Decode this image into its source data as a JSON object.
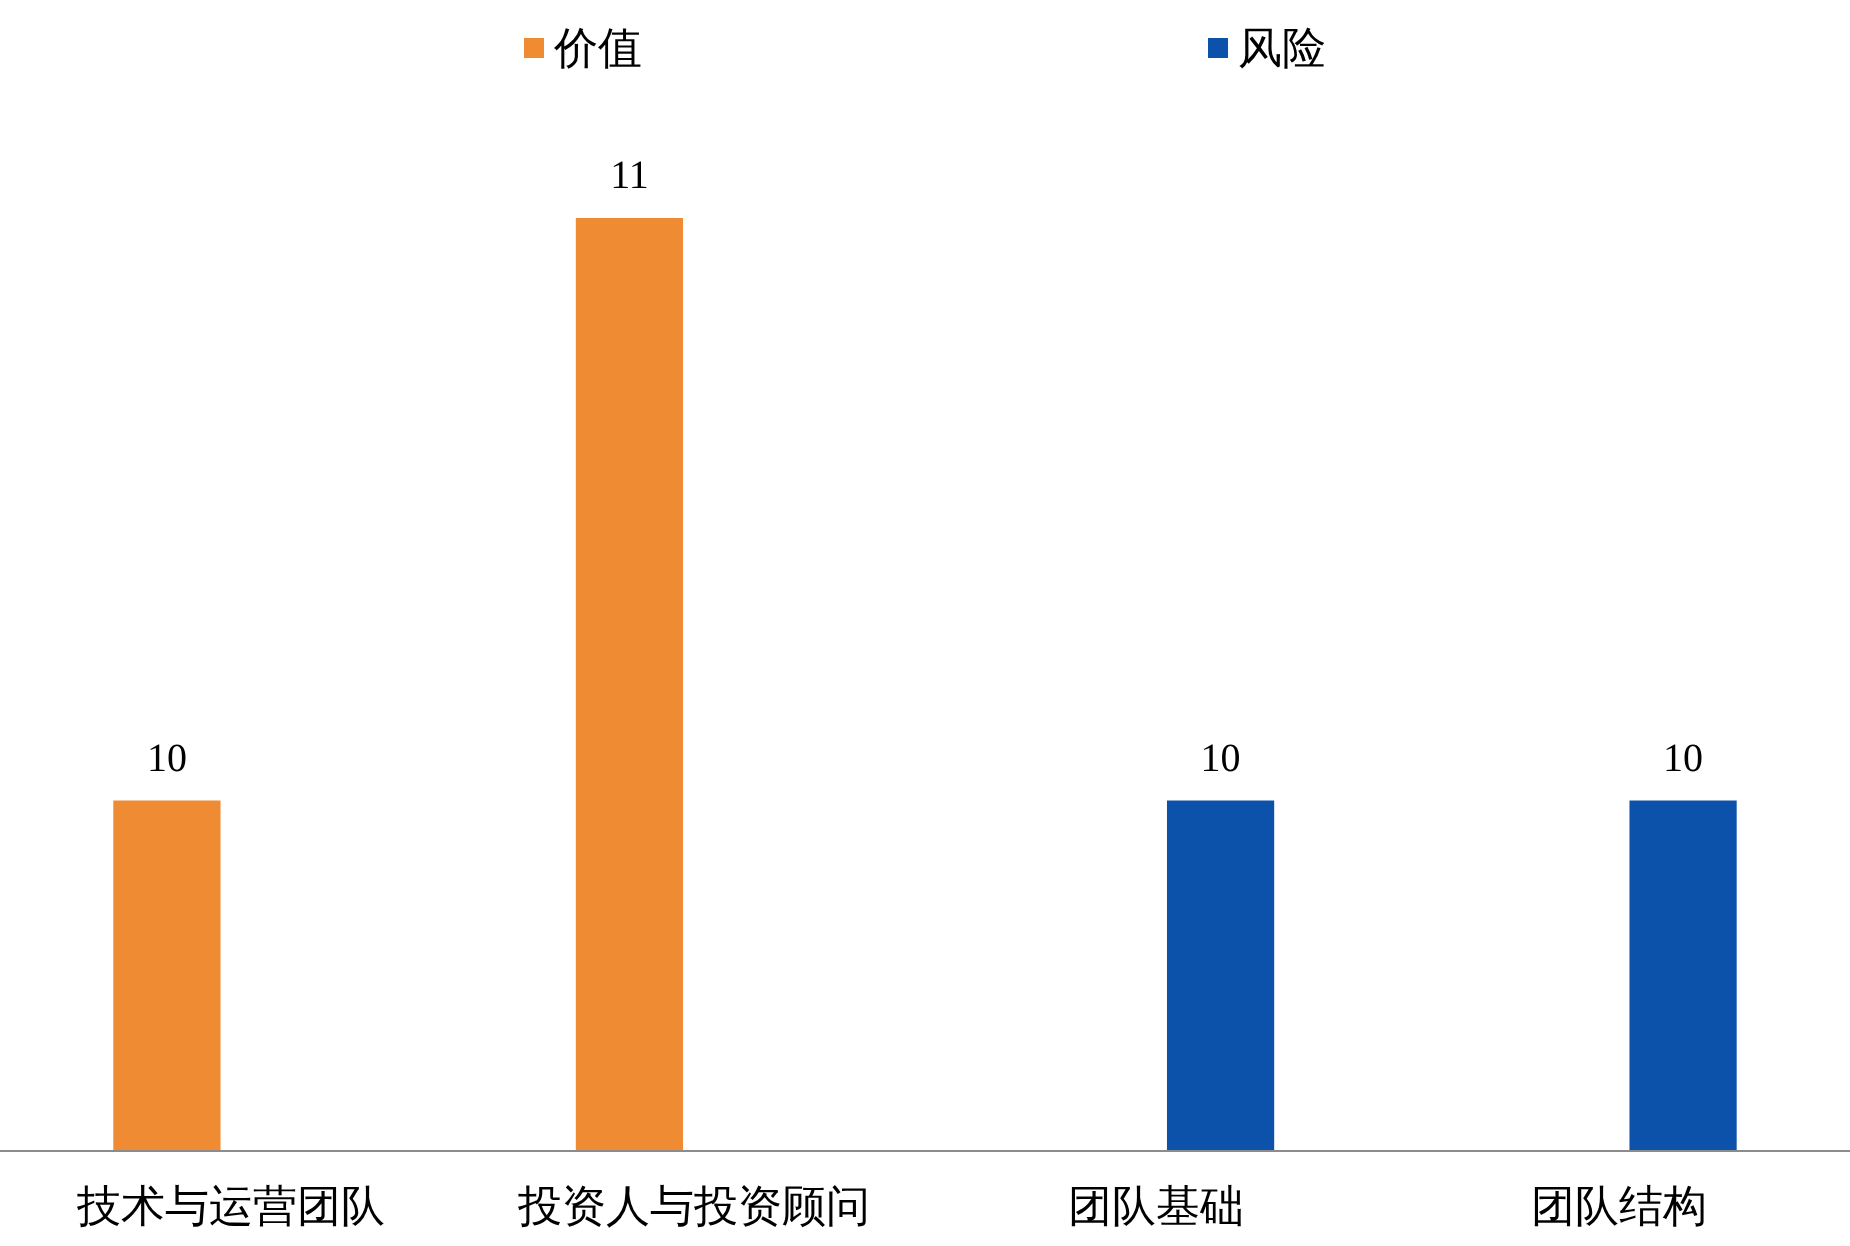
{
  "chart_data": {
    "type": "bar",
    "categories": [
      "技术与运营团队",
      "投资人与投资顾问",
      "团队基础",
      "团队结构"
    ],
    "series": [
      {
        "name": "价值",
        "color": "#ee8b33",
        "values": [
          10,
          11,
          null,
          null
        ]
      },
      {
        "name": "风险",
        "color": "#0c52ab",
        "values": [
          null,
          null,
          10,
          10
        ]
      }
    ],
    "ylim": [
      9.4,
      11
    ],
    "tick_labels": "x",
    "data_labels": true,
    "legend": "top"
  }
}
